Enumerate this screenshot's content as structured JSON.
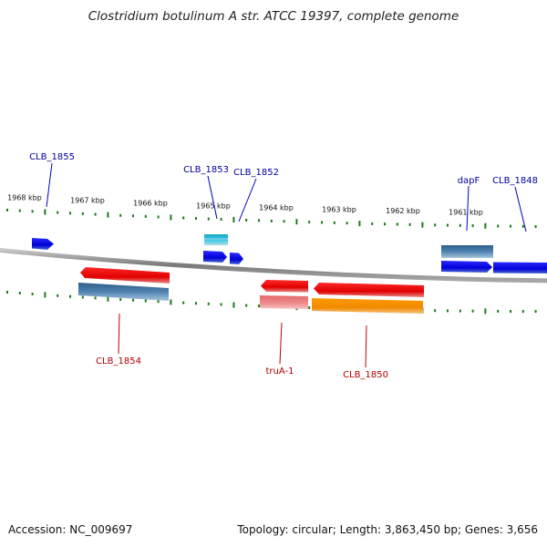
{
  "title": "Clostridium botulinum A str. ATCC 19397, complete genome",
  "footer": {
    "accession": "Accession: NC_009697",
    "summary": "Topology: circular; Length: 3,863,450 bp; Genes: 3,656"
  },
  "kbp_ticks": [
    "1968 kbp",
    "1967 kbp",
    "1966 kbp",
    "1965 kbp",
    "1964 kbp",
    "1963 kbp",
    "1962 kbp",
    "1961 kbp"
  ],
  "colors": {
    "forward_gene": "#0000e0",
    "reverse_gene": "#e00000",
    "forward_label": "#00009a",
    "reverse_label": "#b00000",
    "backbone": "#8a8a8a",
    "tick": "#1a7a1a",
    "cds_band": "#4f82b0",
    "cyan_band": "#22b8d8",
    "pink_band": "#e88080",
    "orange_band": "#f59a00"
  },
  "genes": [
    {
      "label": "CLB_1855",
      "strand": "forward"
    },
    {
      "label": "CLB_1853",
      "strand": "forward"
    },
    {
      "label": "CLB_1852",
      "strand": "forward"
    },
    {
      "label": "dapF",
      "strand": "forward"
    },
    {
      "label": "CLB_1848",
      "strand": "forward"
    },
    {
      "label": "CLB_1854",
      "strand": "reverse"
    },
    {
      "label": "truA-1",
      "strand": "reverse"
    },
    {
      "label": "CLB_1850",
      "strand": "reverse"
    }
  ]
}
